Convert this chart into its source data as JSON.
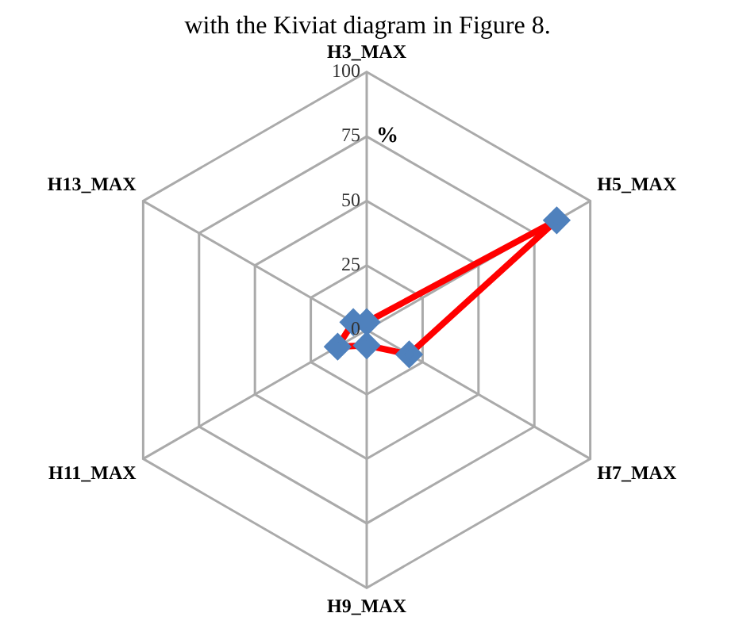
{
  "chart_data": {
    "type": "radar",
    "categories": [
      "H3_MAX",
      "H5_MAX",
      "H7_MAX",
      "H9_MAX",
      "H11_MAX",
      "H13_MAX"
    ],
    "series": [
      {
        "color": "#ff0000",
        "values": [
          3,
          85,
          19,
          6,
          13,
          6
        ]
      }
    ],
    "ylim": [
      0,
      100
    ],
    "yticks": [
      0,
      25,
      50,
      75,
      100
    ],
    "grid": true,
    "legend": false,
    "marker": "diamond",
    "annotations": [
      "with the Kiviat diagram in Figure 8.",
      "%"
    ]
  }
}
